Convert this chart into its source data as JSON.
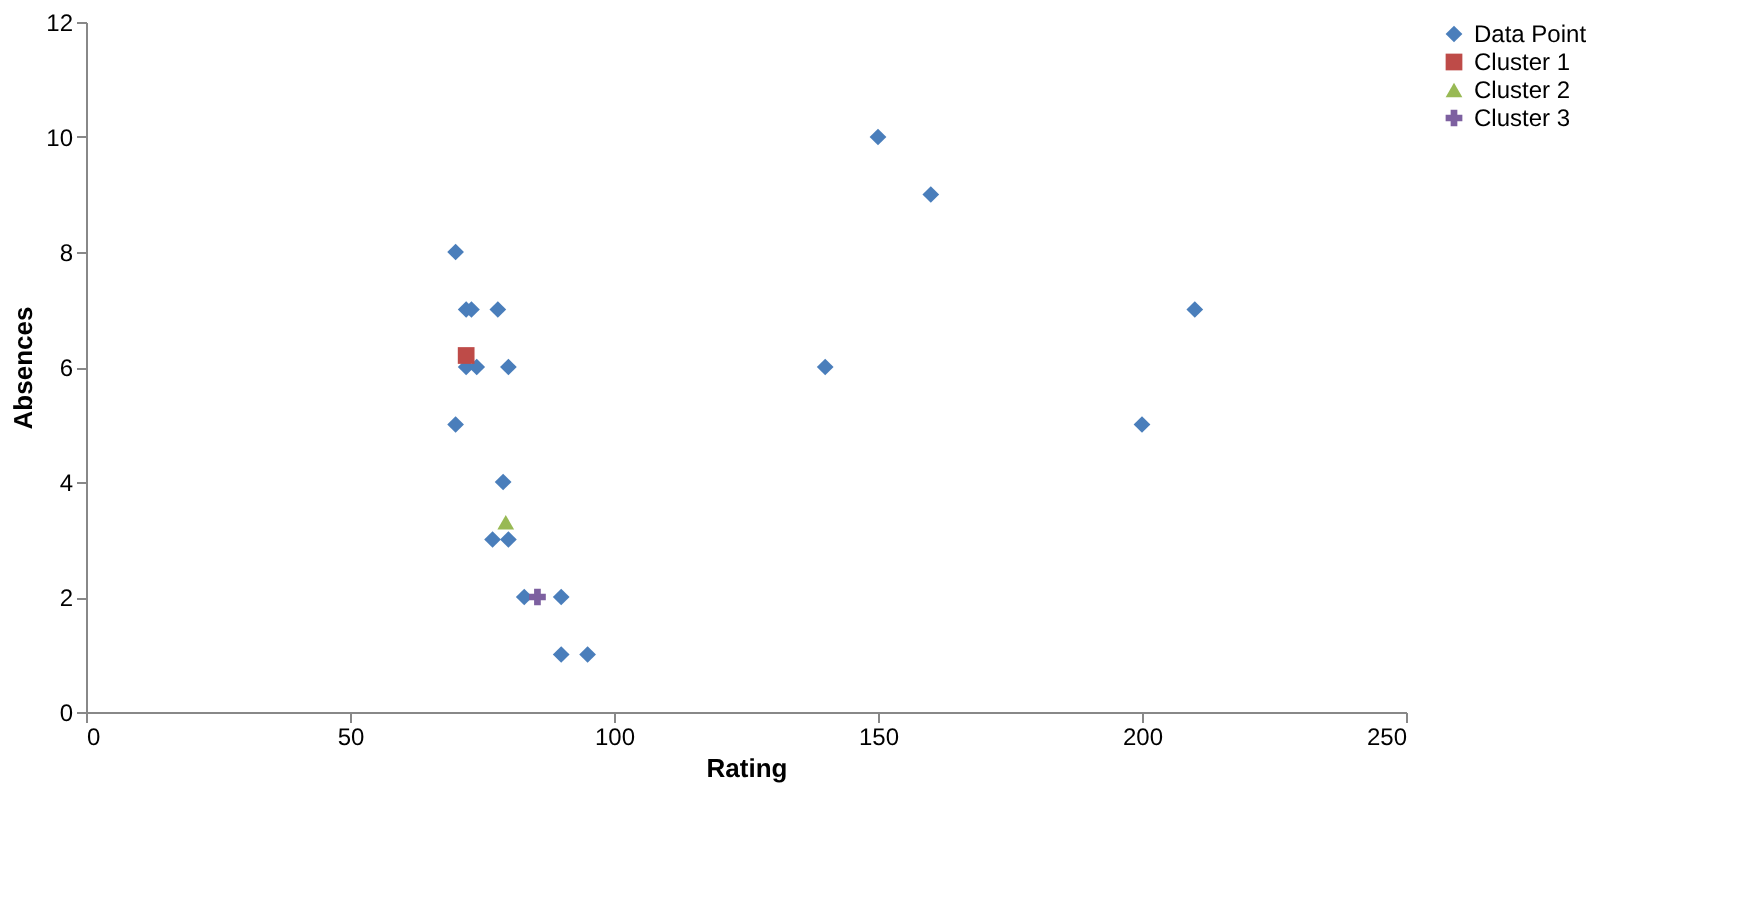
{
  "chart_data": {
    "type": "scatter",
    "xlabel": "Rating",
    "ylabel": "Absences",
    "xlim": [
      0,
      250
    ],
    "xticks": [
      0,
      50,
      100,
      150,
      200,
      250
    ],
    "ylim": [
      0,
      12
    ],
    "yticks": [
      0,
      2,
      4,
      6,
      8,
      10,
      12
    ],
    "grid": false,
    "legend": "right",
    "series": [
      {
        "name": "Data Point",
        "color": "#4a7ebb",
        "marker": "diamond",
        "x": [
          70,
          72,
          73,
          78,
          72,
          74,
          80,
          70,
          79,
          77,
          79,
          80,
          83,
          90,
          90,
          95,
          150,
          160,
          140,
          210,
          200
        ],
        "values": [
          8,
          7,
          7,
          7,
          6,
          6,
          6,
          5,
          4,
          3,
          null,
          3,
          2,
          2,
          1,
          1,
          10,
          9,
          6,
          7,
          5
        ]
      },
      {
        "name": "Cluster 1",
        "color": "#be4b48",
        "marker": "square",
        "x": [
          72
        ],
        "values": [
          6.2
        ]
      },
      {
        "name": "Cluster 2",
        "color": "#98b954",
        "marker": "triangle",
        "x": [
          79.5
        ],
        "values": [
          3.3
        ]
      },
      {
        "name": "Cluster 3",
        "color": "#7d60a0",
        "marker": "cross",
        "x": [
          85.5
        ],
        "values": [
          2
        ]
      }
    ]
  }
}
